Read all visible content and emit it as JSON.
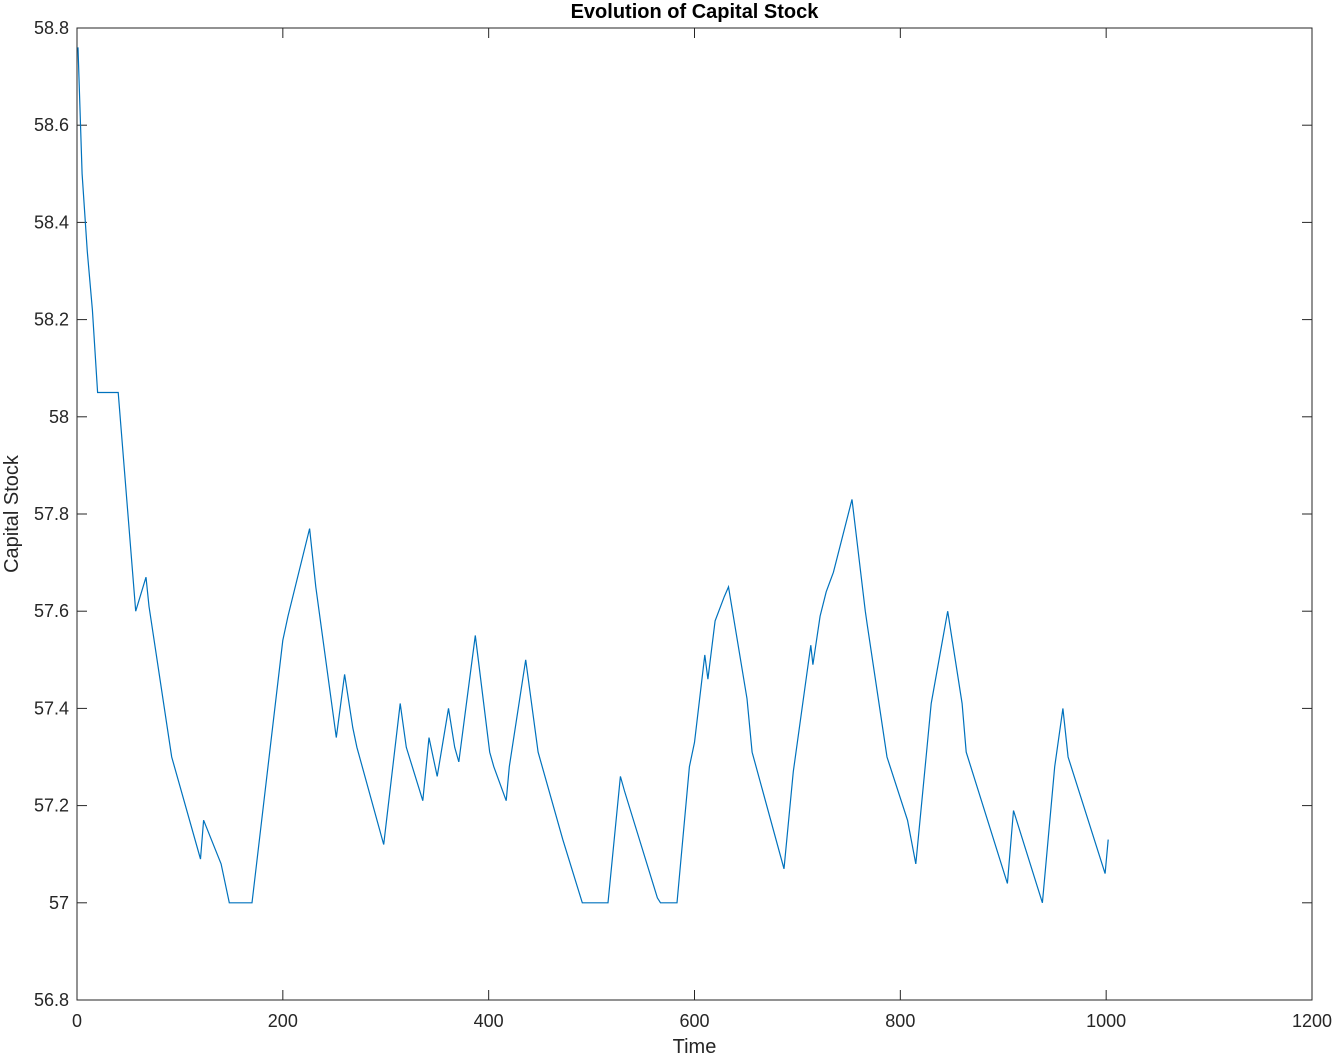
{
  "chart_data": {
    "type": "line",
    "title": "Evolution of Capital Stock",
    "xlabel": "Time",
    "ylabel": "Capital Stock",
    "xlim": [
      0,
      1200
    ],
    "ylim": [
      56.8,
      58.8
    ],
    "xticks": [
      0,
      200,
      400,
      600,
      800,
      1000,
      1200
    ],
    "xtick_labels": [
      "0",
      "200",
      "400",
      "600",
      "800",
      "1000",
      "1200"
    ],
    "yticks": [
      56.8,
      57.0,
      57.2,
      57.4,
      57.6,
      57.8,
      58.0,
      58.2,
      58.4,
      58.6,
      58.8
    ],
    "ytick_labels": [
      "56.8",
      "57",
      "57.2",
      "57.4",
      "57.6",
      "57.8",
      "58",
      "58.2",
      "58.4",
      "58.6",
      "58.8"
    ],
    "grid": false,
    "box": true,
    "line_color": "#0072bd",
    "series": [
      {
        "x": [
          1,
          5,
          10,
          15,
          20,
          22,
          40,
          57,
          67,
          70,
          92,
          120,
          123,
          140,
          148,
          170,
          200,
          205,
          226,
          232,
          252,
          260,
          268,
          272,
          298,
          314,
          320,
          336,
          342,
          350,
          361,
          367,
          371,
          387,
          401,
          405,
          417,
          420,
          436,
          448,
          472,
          491,
          516,
          528,
          532,
          564,
          567,
          583,
          595,
          600,
          610,
          613,
          620,
          629,
          633,
          651,
          656,
          687,
          696,
          713,
          715,
          722,
          728,
          735,
          753,
          766,
          768,
          787,
          807,
          815,
          825,
          830,
          846,
          860,
          864,
          904,
          910,
          938,
          950,
          958,
          963,
          999,
          1002
        ],
        "y": [
          58.76,
          58.5,
          58.34,
          58.22,
          58.05,
          58.05,
          58.05,
          57.6,
          57.67,
          57.61,
          57.3,
          57.09,
          57.17,
          57.08,
          57.0,
          57.0,
          57.54,
          57.59,
          57.77,
          57.65,
          57.34,
          57.47,
          57.36,
          57.32,
          57.12,
          57.41,
          57.32,
          57.21,
          57.34,
          57.26,
          57.4,
          57.32,
          57.29,
          57.55,
          57.31,
          57.28,
          57.21,
          57.28,
          57.5,
          57.31,
          57.13,
          57.0,
          57.0,
          57.26,
          57.23,
          57.01,
          57.0,
          57.0,
          57.28,
          57.33,
          57.51,
          57.46,
          57.58,
          57.63,
          57.65,
          57.42,
          57.31,
          57.07,
          57.27,
          57.53,
          57.49,
          57.59,
          57.64,
          57.68,
          57.83,
          57.6,
          57.57,
          57.3,
          57.17,
          57.08,
          57.3,
          57.41,
          57.6,
          57.41,
          57.31,
          57.04,
          57.19,
          57.0,
          57.28,
          57.4,
          57.3,
          57.06,
          57.13
        ]
      }
    ]
  }
}
